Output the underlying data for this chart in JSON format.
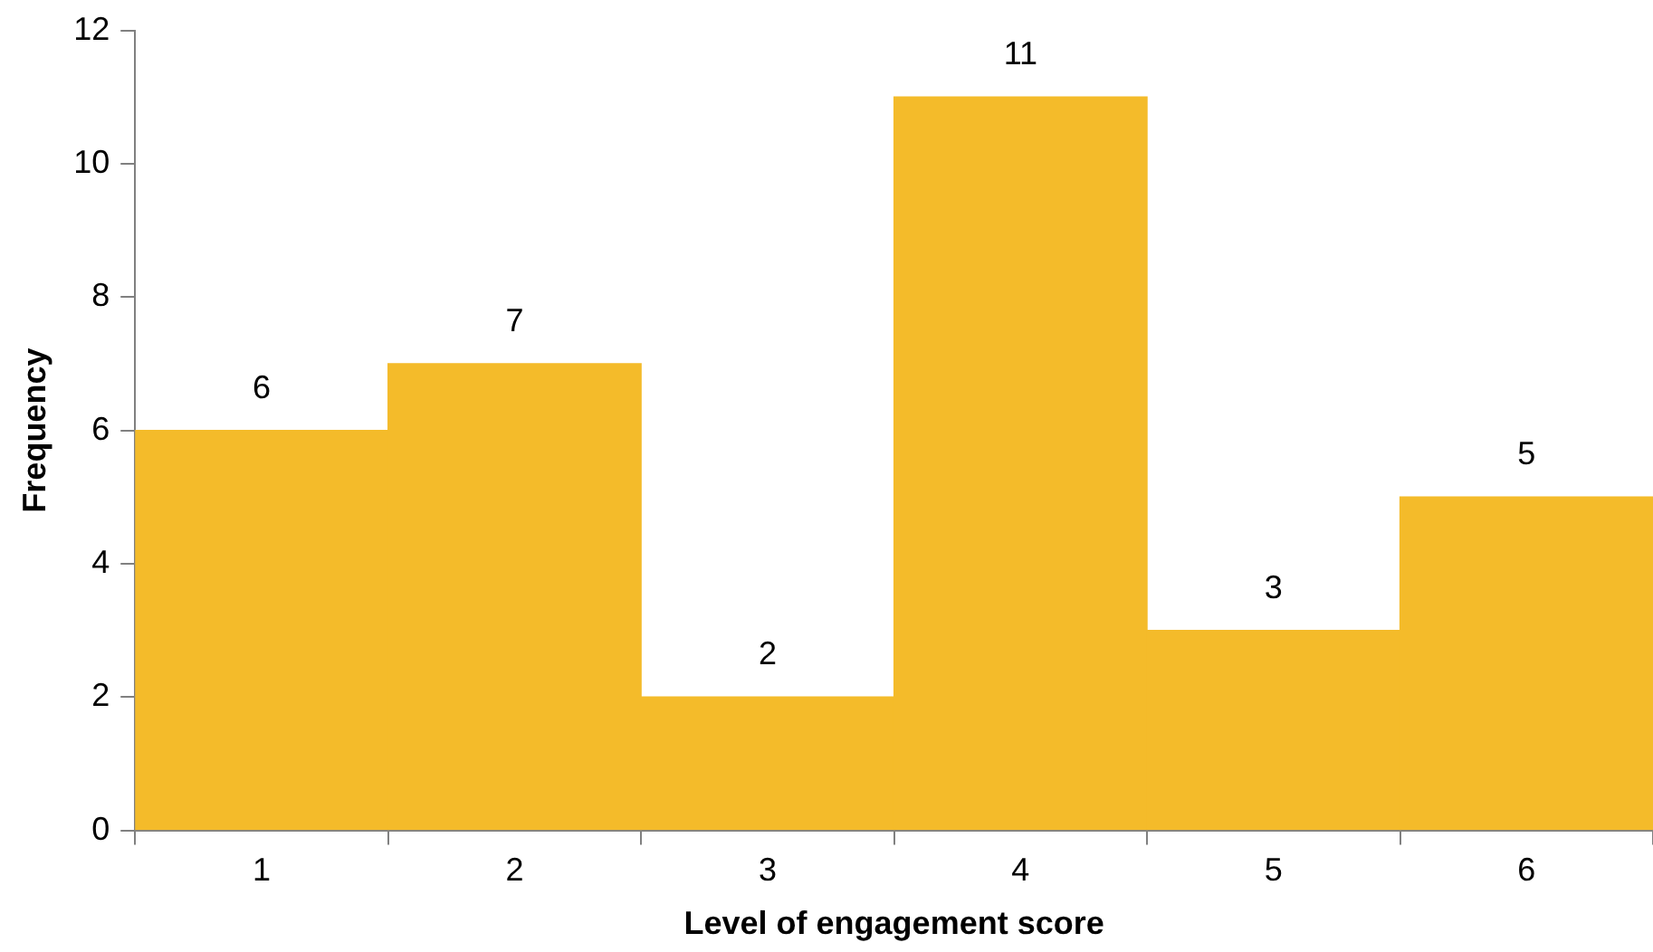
{
  "chart_data": {
    "type": "bar",
    "xlabel": "Level of engagement score",
    "ylabel": "Frequency",
    "categories": [
      "1",
      "2",
      "3",
      "4",
      "5",
      "6"
    ],
    "values": [
      6,
      7,
      2,
      11,
      3,
      5
    ],
    "color": "#f4bb2a",
    "ylim": [
      0,
      12
    ],
    "yticks": [
      0,
      2,
      4,
      6,
      8,
      10,
      12
    ],
    "grid": false,
    "legend": false,
    "data_labels": true
  }
}
